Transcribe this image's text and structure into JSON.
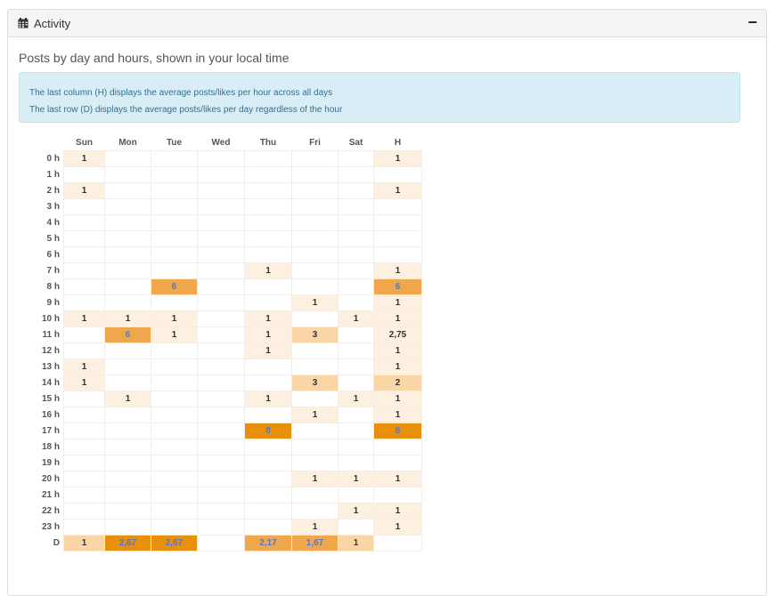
{
  "panel": {
    "title": "Activity",
    "collapse_label": "−"
  },
  "section_title": "Posts by day and hours, shown in your local time",
  "info": {
    "line1": "The last column (H) displays the average posts/likes per hour across all days",
    "line2": "The last row (D) displays the average posts/likes per day regardless of the hour"
  },
  "colors": {
    "level1": "#fdf0e0",
    "level2": "#fad6a6",
    "level3": "#f0a64a",
    "level4": "#e8900c"
  },
  "heatmap": {
    "columns": [
      "Sun",
      "Mon",
      "Tue",
      "Wed",
      "Thu",
      "Fri",
      "Sat",
      "H"
    ],
    "rows": [
      {
        "label": "0 h",
        "cells": [
          "1",
          "",
          "",
          "",
          "",
          "",
          "",
          "1"
        ]
      },
      {
        "label": "1 h",
        "cells": [
          "",
          "",
          "",
          "",
          "",
          "",
          "",
          ""
        ]
      },
      {
        "label": "2 h",
        "cells": [
          "1",
          "",
          "",
          "",
          "",
          "",
          "",
          "1"
        ]
      },
      {
        "label": "3 h",
        "cells": [
          "",
          "",
          "",
          "",
          "",
          "",
          "",
          ""
        ]
      },
      {
        "label": "4 h",
        "cells": [
          "",
          "",
          "",
          "",
          "",
          "",
          "",
          ""
        ]
      },
      {
        "label": "5 h",
        "cells": [
          "",
          "",
          "",
          "",
          "",
          "",
          "",
          ""
        ]
      },
      {
        "label": "6 h",
        "cells": [
          "",
          "",
          "",
          "",
          "",
          "",
          "",
          ""
        ]
      },
      {
        "label": "7 h",
        "cells": [
          "",
          "",
          "",
          "",
          "1",
          "",
          "",
          "1"
        ]
      },
      {
        "label": "8 h",
        "cells": [
          "",
          "",
          "6",
          "",
          "",
          "",
          "",
          "6"
        ]
      },
      {
        "label": "9 h",
        "cells": [
          "",
          "",
          "",
          "",
          "",
          "1",
          "",
          "1"
        ]
      },
      {
        "label": "10 h",
        "cells": [
          "1",
          "1",
          "1",
          "",
          "1",
          "",
          "1",
          "1"
        ]
      },
      {
        "label": "11 h",
        "cells": [
          "",
          "6",
          "1",
          "",
          "1",
          "3",
          "",
          "2,75"
        ]
      },
      {
        "label": "12 h",
        "cells": [
          "",
          "",
          "",
          "",
          "1",
          "",
          "",
          "1"
        ]
      },
      {
        "label": "13 h",
        "cells": [
          "1",
          "",
          "",
          "",
          "",
          "",
          "",
          "1"
        ]
      },
      {
        "label": "14 h",
        "cells": [
          "1",
          "",
          "",
          "",
          "",
          "3",
          "",
          "2"
        ]
      },
      {
        "label": "15 h",
        "cells": [
          "",
          "1",
          "",
          "",
          "1",
          "",
          "1",
          "1"
        ]
      },
      {
        "label": "16 h",
        "cells": [
          "",
          "",
          "",
          "",
          "",
          "1",
          "",
          "1"
        ]
      },
      {
        "label": "17 h",
        "cells": [
          "",
          "",
          "",
          "",
          "8",
          "",
          "",
          "8"
        ]
      },
      {
        "label": "18 h",
        "cells": [
          "",
          "",
          "",
          "",
          "",
          "",
          "",
          ""
        ]
      },
      {
        "label": "19 h",
        "cells": [
          "",
          "",
          "",
          "",
          "",
          "",
          "",
          ""
        ]
      },
      {
        "label": "20 h",
        "cells": [
          "",
          "",
          "",
          "",
          "",
          "1",
          "1",
          "1"
        ]
      },
      {
        "label": "21 h",
        "cells": [
          "",
          "",
          "",
          "",
          "",
          "",
          "",
          ""
        ]
      },
      {
        "label": "22 h",
        "cells": [
          "",
          "",
          "",
          "",
          "",
          "",
          "1",
          "1"
        ]
      },
      {
        "label": "23 h",
        "cells": [
          "",
          "",
          "",
          "",
          "",
          "1",
          "",
          "1"
        ]
      },
      {
        "label": "D",
        "cells": [
          "1",
          "2,67",
          "2,67",
          "",
          "2,17",
          "1,67",
          "1",
          ""
        ]
      }
    ],
    "levels": [
      [
        1,
        0,
        0,
        0,
        0,
        0,
        0,
        1
      ],
      [
        0,
        0,
        0,
        0,
        0,
        0,
        0,
        0
      ],
      [
        1,
        0,
        0,
        0,
        0,
        0,
        0,
        1
      ],
      [
        0,
        0,
        0,
        0,
        0,
        0,
        0,
        0
      ],
      [
        0,
        0,
        0,
        0,
        0,
        0,
        0,
        0
      ],
      [
        0,
        0,
        0,
        0,
        0,
        0,
        0,
        0
      ],
      [
        0,
        0,
        0,
        0,
        0,
        0,
        0,
        0
      ],
      [
        0,
        0,
        0,
        0,
        1,
        0,
        0,
        1
      ],
      [
        0,
        0,
        3,
        0,
        0,
        0,
        0,
        3
      ],
      [
        0,
        0,
        0,
        0,
        0,
        1,
        0,
        1
      ],
      [
        1,
        1,
        1,
        0,
        1,
        0,
        1,
        1
      ],
      [
        0,
        3,
        1,
        0,
        1,
        2,
        0,
        1
      ],
      [
        0,
        0,
        0,
        0,
        1,
        0,
        0,
        1
      ],
      [
        1,
        0,
        0,
        0,
        0,
        0,
        0,
        1
      ],
      [
        1,
        0,
        0,
        0,
        0,
        2,
        0,
        2
      ],
      [
        0,
        1,
        0,
        0,
        1,
        0,
        1,
        1
      ],
      [
        0,
        0,
        0,
        0,
        0,
        1,
        0,
        1
      ],
      [
        0,
        0,
        0,
        0,
        4,
        0,
        0,
        4
      ],
      [
        0,
        0,
        0,
        0,
        0,
        0,
        0,
        0
      ],
      [
        0,
        0,
        0,
        0,
        0,
        0,
        0,
        0
      ],
      [
        0,
        0,
        0,
        0,
        0,
        1,
        1,
        1
      ],
      [
        0,
        0,
        0,
        0,
        0,
        0,
        0,
        0
      ],
      [
        0,
        0,
        0,
        0,
        0,
        0,
        1,
        1
      ],
      [
        0,
        0,
        0,
        0,
        0,
        1,
        0,
        1
      ],
      [
        2,
        4,
        4,
        0,
        3,
        3,
        2,
        0
      ]
    ]
  }
}
